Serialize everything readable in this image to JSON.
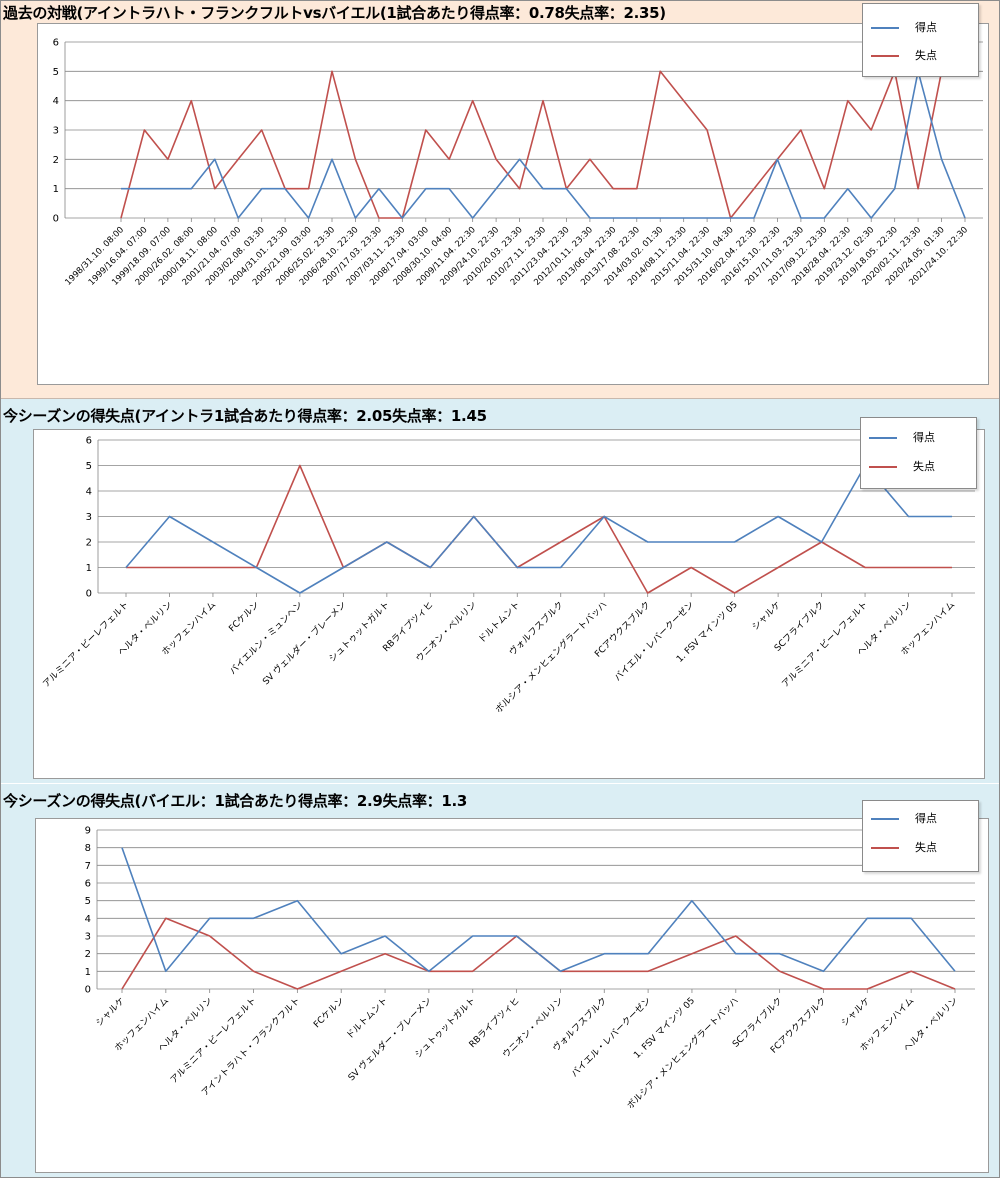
{
  "colors": {
    "scored": "#4f81bd",
    "conceded": "#c0504d",
    "grid": "#868686",
    "axis": "#868686"
  },
  "legend": {
    "scored": "得点",
    "conceded": "失点"
  },
  "chart_data": [
    {
      "type": "line",
      "title": "過去の対戦(アイントラハト・フランクフルトvsバイエル(1試合あたり得点率：0.78失点率：2.35)",
      "ylim": [
        0,
        6
      ],
      "yticks": [
        0,
        1,
        2,
        3,
        4,
        5,
        6
      ],
      "grid": true,
      "legend_position": "top-right",
      "x": [
        "1998/31.10. 08:00",
        "1999/16.04. 07:00",
        "1999/18.09. 07:00",
        "2000/26.02. 08:00",
        "2000/18.11. 08:00",
        "2001/21.04. 07:00",
        "2003/02.08. 03:30",
        "2004/31.01. 23:30",
        "2005/21.09. 03:00",
        "2006/25.02. 23:30",
        "2006/28.10. 22:30",
        "2007/17.03. 23:30",
        "2007/03.11. 23:30",
        "2008/17.04. 03:00",
        "2008/30.10. 04:00",
        "2009/11.04. 22:30",
        "2009/24.10. 22:30",
        "2010/20.03. 23:30",
        "2010/27.11. 23:30",
        "2011/23.04. 22:30",
        "2012/10.11. 23:30",
        "2013/06.04. 22:30",
        "2013/17.08. 22:30",
        "2014/03.02. 01:30",
        "2014/08.11. 23:30",
        "2015/11.04. 22:30",
        "2015/31.10. 04:30",
        "2016/02.04. 22:30",
        "2016/15.10. 22:30",
        "2017/11.03. 23:30",
        "2017/09.12. 23:30",
        "2018/28.04. 22:30",
        "2019/23.12. 02:30",
        "2019/18.05. 22:30",
        "2020/02.11. 23:30",
        "2020/24.05. 01:30",
        "2021/24.10. 22:30"
      ],
      "series": [
        {
          "name": "得点",
          "key": "scored",
          "values": [
            1,
            1,
            1,
            1,
            2,
            0,
            1,
            1,
            0,
            2,
            0,
            1,
            0,
            1,
            1,
            0,
            1,
            2,
            1,
            1,
            0,
            0,
            0,
            0,
            0,
            0,
            0,
            0,
            2,
            0,
            0,
            1,
            0,
            1,
            5,
            2,
            0
          ]
        },
        {
          "name": "失点",
          "key": "conceded",
          "values": [
            0,
            3,
            2,
            4,
            1,
            2,
            3,
            1,
            1,
            5,
            2,
            0,
            0,
            3,
            2,
            4,
            2,
            1,
            4,
            1,
            2,
            1,
            1,
            5,
            4,
            3,
            0,
            1,
            2,
            3,
            1,
            4,
            3,
            5,
            1,
            5,
            5
          ]
        }
      ]
    },
    {
      "type": "line",
      "title": "今シーズンの得失点(アイントラ1試合あたり得点率：2.05失点率：1.45",
      "ylim": [
        0,
        6
      ],
      "yticks": [
        0,
        1,
        2,
        3,
        4,
        5,
        6
      ],
      "grid": true,
      "legend_position": "top-right",
      "x": [
        "アルミニア・ビーレフェルト",
        "ヘルタ・ベルリン",
        "ホッフェンハイム",
        "FCケルン",
        "バイエルン・ミュンヘン",
        "SV ヴェルダー・ブレーメン",
        "シュトゥットガルト",
        "RBライプツィヒ",
        "ウニオン・ベルリン",
        "ドルトムント",
        "ヴォルフスブルク",
        "ボルシア・メンヒェングラートバッハ",
        "FCアウクスブルク",
        "バイエル・レバークーゼン",
        "1. FSV マインツ 05",
        "シャルケ",
        "SCフライブルク",
        "アルミニア・ビーレフェルト",
        "ヘルタ・ベルリン",
        "ホッフェンハイム"
      ],
      "series": [
        {
          "name": "得点",
          "key": "scored",
          "values": [
            1,
            3,
            2,
            1,
            0,
            1,
            2,
            1,
            3,
            1,
            1,
            3,
            2,
            2,
            2,
            3,
            2,
            5,
            3,
            3
          ]
        },
        {
          "name": "失点",
          "key": "conceded",
          "values": [
            1,
            1,
            1,
            1,
            5,
            1,
            2,
            1,
            3,
            1,
            2,
            3,
            0,
            1,
            0,
            1,
            2,
            1,
            1,
            1
          ]
        }
      ]
    },
    {
      "type": "line",
      "title": "今シーズンの得失点(バイエル：1試合あたり得点率：2.9失点率：1.3",
      "ylim": [
        0,
        9
      ],
      "yticks": [
        0,
        1,
        2,
        3,
        4,
        5,
        6,
        7,
        8,
        9
      ],
      "grid": true,
      "legend_position": "top-right",
      "x": [
        "シャルケ",
        "ホッフェンハイム",
        "ヘルタ・ベルリン",
        "アルミニア・ビーレフェルト",
        "アイントラハト・フランクフルト",
        "FCケルン",
        "ドルトムント",
        "SV ヴェルダー・ブレーメン",
        "シュトゥットガルト",
        "RBライプツィヒ",
        "ウニオン・ベルリン",
        "ヴォルフスブルク",
        "バイエル・レバークーゼン",
        "1. FSV マインツ 05",
        "ボルシア・メンヒェングラートバッハ",
        "SCフライブルク",
        "FCアウクスブルク",
        "シャルケ",
        "ホッフェンハイム",
        "ヘルタ・ベルリン"
      ],
      "series": [
        {
          "name": "得点",
          "key": "scored",
          "values": [
            8,
            1,
            4,
            4,
            5,
            2,
            3,
            1,
            3,
            3,
            1,
            2,
            2,
            5,
            2,
            2,
            1,
            4,
            4,
            1
          ]
        },
        {
          "name": "失点",
          "key": "conceded",
          "values": [
            0,
            4,
            3,
            1,
            0,
            1,
            2,
            1,
            1,
            3,
            1,
            1,
            1,
            2,
            3,
            1,
            0,
            0,
            1,
            0
          ]
        }
      ]
    }
  ]
}
